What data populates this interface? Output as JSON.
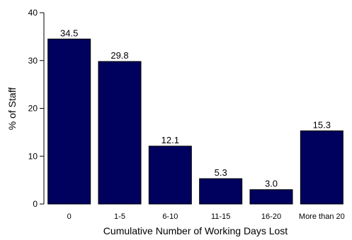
{
  "chart_data": {
    "type": "bar",
    "title": "",
    "xlabel": "Cumulative Number of Working Days Lost",
    "ylabel": "% of Staff",
    "categories": [
      "0",
      "1-5",
      "6-10",
      "11-15",
      "16-20",
      "More than 20"
    ],
    "values": [
      34.5,
      29.8,
      12.1,
      5.3,
      3.0,
      15.3
    ],
    "data_labels": [
      "34.5",
      "29.8",
      "12.1",
      "5.3",
      "3.0",
      "15.3"
    ],
    "ylim": [
      0,
      40
    ],
    "yticks": [
      0,
      10,
      20,
      30,
      40
    ],
    "ytick_labels": [
      "0",
      "10",
      "20",
      "30",
      "40"
    ],
    "grid": false,
    "legend": "none",
    "bar_color": "#00005e"
  }
}
